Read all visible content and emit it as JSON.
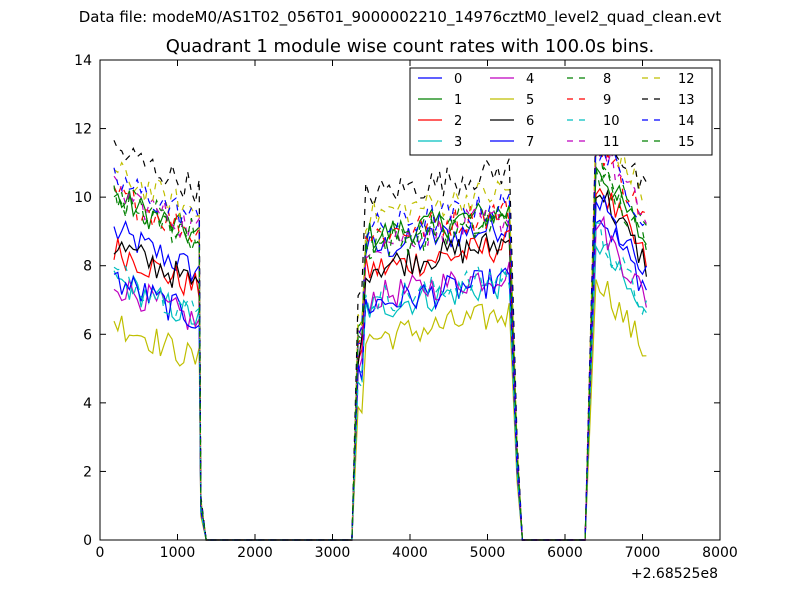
{
  "figure": {
    "suptitle": "Data file: modeM0/AS1T02_056T01_9000002210_14976cztM0_level2_quad_clean.evt"
  },
  "chart_data": {
    "type": "line",
    "title": "Quadrant 1 module wise count rates with 100.0s bins.",
    "xlabel": "",
    "ylabel": "",
    "xlim": [
      0,
      8000
    ],
    "ylim": [
      0,
      14
    ],
    "x_offset_label": "+2.68525e8",
    "xticks": [
      0,
      1000,
      2000,
      3000,
      4000,
      5000,
      6000,
      7000,
      8000
    ],
    "yticks": [
      0,
      2,
      4,
      6,
      8,
      10,
      12,
      14
    ],
    "legend": {
      "placement": "top-right",
      "ncol": 4
    },
    "segments": [
      {
        "x_start": 180,
        "x_end": 1280,
        "step": 50,
        "drop_x": 1370
      },
      {
        "x_start": 3330,
        "x_end": 5280,
        "step": 50,
        "rise_x": 3250,
        "drop_x": 5450
      },
      {
        "x_start": 6400,
        "x_end": 7060,
        "step": 50,
        "rise_x": 6260
      }
    ],
    "series": [
      {
        "name": "0",
        "color": "#0000ff",
        "dash": "solid",
        "levels": [
          8.4,
          8.4,
          8.9
        ]
      },
      {
        "name": "1",
        "color": "#008000",
        "dash": "solid",
        "levels": [
          9.4,
          8.8,
          10.2
        ]
      },
      {
        "name": "2",
        "color": "#ff0000",
        "dash": "solid",
        "levels": [
          7.9,
          7.8,
          9.7
        ]
      },
      {
        "name": "3",
        "color": "#00bfbf",
        "dash": "solid",
        "levels": [
          7.0,
          6.7,
          8.0
        ]
      },
      {
        "name": "4",
        "color": "#bf00bf",
        "dash": "solid",
        "levels": [
          6.9,
          7.0,
          8.6
        ]
      },
      {
        "name": "5",
        "color": "#bfbf00",
        "dash": "solid",
        "levels": [
          5.8,
          5.8,
          7.0
        ]
      },
      {
        "name": "6",
        "color": "#000000",
        "dash": "solid",
        "levels": [
          8.0,
          7.9,
          9.6
        ]
      },
      {
        "name": "7",
        "color": "#0000ff",
        "dash": "solid",
        "levels": [
          7.0,
          6.8,
          9.2
        ]
      },
      {
        "name": "8",
        "color": "#008000",
        "dash": "dashed",
        "levels": [
          9.3,
          8.7,
          10.4
        ]
      },
      {
        "name": "9",
        "color": "#ff0000",
        "dash": "dashed",
        "levels": [
          9.5,
          8.8,
          10.9
        ]
      },
      {
        "name": "10",
        "color": "#00bfbf",
        "dash": "dashed",
        "levels": [
          7.2,
          6.9,
          8.3
        ]
      },
      {
        "name": "11",
        "color": "#bf00bf",
        "dash": "dashed",
        "levels": [
          9.6,
          8.6,
          10.9
        ]
      },
      {
        "name": "12",
        "color": "#bfbf00",
        "dash": "dashed",
        "levels": [
          10.1,
          9.4,
          11.5
        ]
      },
      {
        "name": "13",
        "color": "#000000",
        "dash": "dashed",
        "levels": [
          10.8,
          10.0,
          11.6
        ]
      },
      {
        "name": "14",
        "color": "#0000ff",
        "dash": "dashed",
        "levels": [
          9.9,
          9.0,
          10.9
        ]
      },
      {
        "name": "15",
        "color": "#008000",
        "dash": "dashed",
        "levels": [
          9.5,
          8.5,
          10.1
        ]
      }
    ]
  }
}
